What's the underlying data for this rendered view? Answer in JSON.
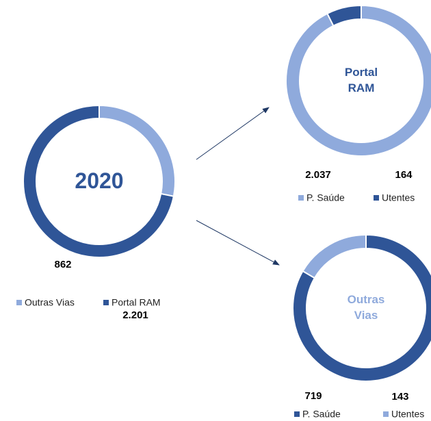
{
  "chart_data": [
    {
      "type": "donut",
      "center_label": "2020",
      "categories": [
        "Outras Vias",
        "Portal RAM"
      ],
      "values": [
        862,
        2201
      ],
      "value_labels": [
        "862",
        "2.201"
      ],
      "colors": [
        "#8faadc",
        "#2f5597"
      ],
      "center_color": "#2f5597",
      "legend": "bottom"
    },
    {
      "type": "donut",
      "center_label": "Portal RAM",
      "categories": [
        "P. Saúde",
        "Utentes"
      ],
      "values": [
        2037,
        164
      ],
      "value_labels": [
        "2.037",
        "164"
      ],
      "colors": [
        "#8faadc",
        "#2f5597"
      ],
      "center_color": "#2f5597",
      "legend": "bottom"
    },
    {
      "type": "donut",
      "center_label": "Outras Vias",
      "categories": [
        "P. Saúde",
        "Utentes"
      ],
      "values": [
        719,
        143
      ],
      "value_labels": [
        "719",
        "143"
      ],
      "colors": [
        "#2f5597",
        "#8faadc"
      ],
      "center_color": "#8faadc",
      "legend": "bottom"
    }
  ]
}
